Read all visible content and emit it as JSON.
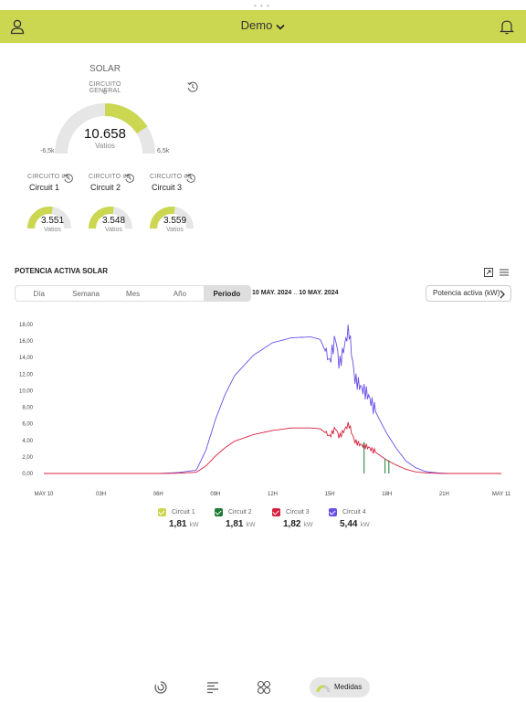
{
  "header": {
    "title": "Demo"
  },
  "solar": {
    "section_label": "SOLAR",
    "general_label": "CIRCUITO GENERAL",
    "general_sub": "0",
    "value": "10.658",
    "unit": "Vatios",
    "min_label": "-6,5k",
    "max_label": "6,5k",
    "gauge_fraction": 0.82
  },
  "circuits": [
    {
      "label": "CIRCUITO #1",
      "name": "Circuit 1",
      "value": "3.551",
      "unit": "Vatios",
      "fraction": 0.55
    },
    {
      "label": "CIRCUITO #2",
      "name": "Circuit 2",
      "value": "3.548",
      "unit": "Vatios",
      "fraction": 0.55
    },
    {
      "label": "CIRCUITO #3",
      "name": "Circuit 3",
      "value": "3.559",
      "unit": "Vatios",
      "fraction": 0.55
    }
  ],
  "chart_panel": {
    "title": "POTENCIA ACTIVA SOLAR",
    "tabs": [
      "Día",
      "Semana",
      "Mes",
      "Año",
      "Periodo"
    ],
    "active_tab": "Periodo",
    "date_from": "10 MAY. 2024",
    "date_sep": "..",
    "date_to": "10 MAY. 2024",
    "metric": "Potencia activa (kW)"
  },
  "legend": [
    {
      "name": "Circuit 1",
      "value": "1,81",
      "unit": "kW",
      "color": "#cbd651"
    },
    {
      "name": "Circuit 2",
      "value": "1,81",
      "unit": "kW",
      "color": "#1e7a32"
    },
    {
      "name": "Circuit 3",
      "value": "1,82",
      "unit": "kW",
      "color": "#d81f3c"
    },
    {
      "name": "Circuit 4",
      "value": "5,44",
      "unit": "kW",
      "color": "#6a4ee8"
    }
  ],
  "nav": {
    "active_label": "Medidas"
  },
  "chart_data": {
    "type": "line",
    "title": "",
    "xlabel": "",
    "ylabel": "",
    "x": [
      0,
      3,
      6,
      7,
      8,
      8.5,
      9,
      9.5,
      10,
      11,
      12,
      13,
      14,
      14.5,
      15,
      15.3,
      15.5,
      16,
      16.3,
      16.6,
      17,
      17.5,
      18,
      18.5,
      19,
      19.5,
      20,
      20.5,
      21,
      22,
      23,
      24
    ],
    "x_tick_labels": [
      "MAY 10",
      "03H",
      "06H",
      "09H",
      "12H",
      "15H",
      "18H",
      "21H",
      "MAY 11"
    ],
    "x_tick_positions": [
      0,
      3,
      6,
      9,
      12,
      15,
      18,
      21,
      24
    ],
    "y_tick_labels": [
      "0,00",
      "2,00",
      "4,00",
      "6,00",
      "8,00",
      "10,00",
      "12,00",
      "14,00",
      "16,00",
      "18,00"
    ],
    "ylim": [
      0,
      18
    ],
    "grid": false,
    "series": [
      {
        "name": "Circuit 4",
        "color": "#6a4ee8",
        "values": [
          0,
          0,
          0,
          0.1,
          0.4,
          2.8,
          6.5,
          9.5,
          11.8,
          14.3,
          15.8,
          16.4,
          16.5,
          16.2,
          13.5,
          16.5,
          13.0,
          17.5,
          11.5,
          10.5,
          9.5,
          7.0,
          4.8,
          3.0,
          1.5,
          0.7,
          0.25,
          0.1,
          0.02,
          0,
          0,
          0
        ]
      },
      {
        "name": "Circuit 3",
        "color": "#d81f3c",
        "values": [
          0,
          0,
          0,
          0.03,
          0.15,
          0.9,
          2.1,
          3.1,
          3.9,
          4.7,
          5.2,
          5.5,
          5.5,
          5.4,
          4.5,
          5.5,
          4.4,
          6.0,
          3.9,
          3.5,
          3.2,
          2.4,
          1.6,
          1.0,
          0.5,
          0.2,
          0.08,
          0.03,
          0,
          0,
          0,
          0
        ]
      }
    ],
    "spikes": [
      {
        "name": "Circuit 2",
        "color": "#1e7a32",
        "x": [
          16.8,
          17.9,
          18.1
        ],
        "values": [
          3.8,
          1.8,
          1.6
        ]
      }
    ]
  }
}
